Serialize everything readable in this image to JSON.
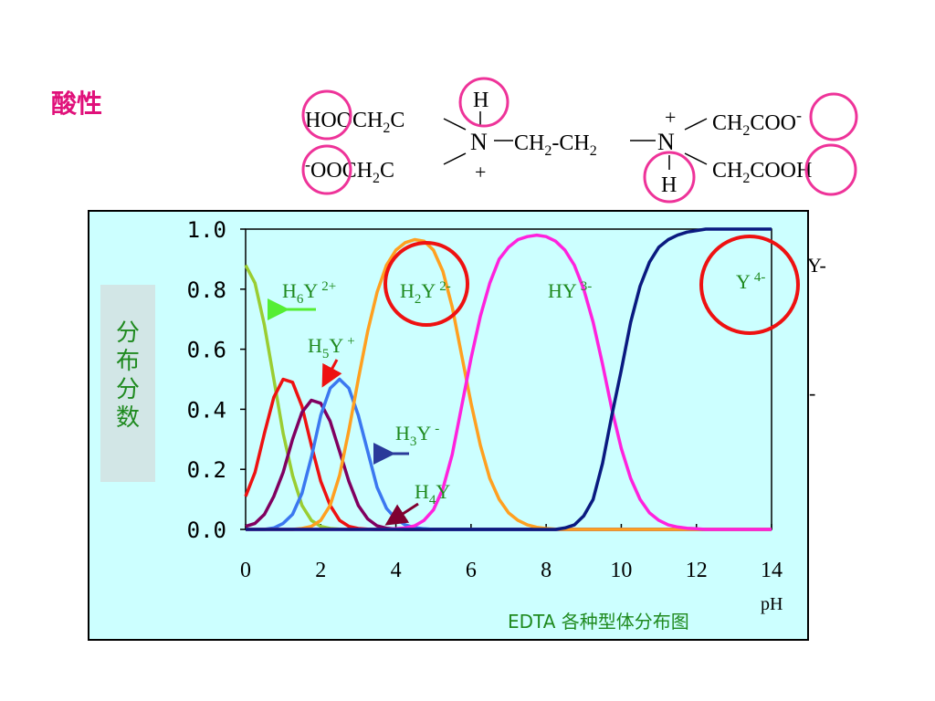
{
  "slide": {
    "title": "酸性",
    "formula": {
      "h_top": "H",
      "h_bottom": "H",
      "top_left": "HOOCH",
      "top_left_sub": "2",
      "top_left_end": "C",
      "bottom_left_sign": "-",
      "bottom_left": "OOCH",
      "bottom_left_sub": "2",
      "bottom_left_end": "C",
      "n1": "N",
      "n2": "N",
      "bridge_a": "CH",
      "bridge_a_sub": "2",
      "bridge_dash": "-",
      "bridge_b": "CH",
      "bridge_b_sub": "2",
      "plus_top": "+",
      "plus_bottom": "+",
      "top_right": "CH",
      "top_right_sub": "2",
      "top_right_end": "COO",
      "top_right_sign": "-",
      "bottom_right": "CH",
      "bottom_right_sub": "2",
      "bottom_right_end": "COOH"
    },
    "stray_labels": {
      "y_minus": "Y-",
      "dash": "-"
    }
  },
  "chart_data": {
    "type": "line",
    "title": "EDTA 各种型体分布图",
    "xlabel": "pH",
    "ylabel": "分布分数",
    "xlim": [
      0,
      14
    ],
    "ylim": [
      0,
      1.0
    ],
    "x_ticks": [
      "0",
      "2",
      "4",
      "6",
      "8",
      "10",
      "12",
      "14"
    ],
    "y_ticks": [
      "0.0",
      "0.2",
      "0.4",
      "0.6",
      "0.8",
      "1.0"
    ],
    "grid": false,
    "x": [
      0,
      0.25,
      0.5,
      0.75,
      1.0,
      1.25,
      1.5,
      1.75,
      2.0,
      2.25,
      2.5,
      2.75,
      3.0,
      3.25,
      3.5,
      3.75,
      4.0,
      4.25,
      4.5,
      4.75,
      5.0,
      5.25,
      5.5,
      5.75,
      6.0,
      6.25,
      6.5,
      6.75,
      7.0,
      7.25,
      7.5,
      7.75,
      8.0,
      8.25,
      8.5,
      8.75,
      9.0,
      9.25,
      9.5,
      9.75,
      10.0,
      10.25,
      10.5,
      10.75,
      11.0,
      11.25,
      11.5,
      11.75,
      12.0,
      12.25,
      12.5,
      12.75,
      13.0,
      13.25,
      13.5,
      13.75,
      14.0
    ],
    "series": [
      {
        "name": "H6Y 2+",
        "color": "#9acd32",
        "values": [
          0.88,
          0.82,
          0.68,
          0.5,
          0.32,
          0.18,
          0.08,
          0.03,
          0.01,
          0.003,
          0.001,
          0,
          0,
          0,
          0,
          0,
          0,
          0,
          0,
          0,
          0,
          0,
          0,
          0,
          0,
          0,
          0,
          0,
          0,
          0,
          0,
          0,
          0,
          0,
          0,
          0,
          0,
          0,
          0,
          0,
          0,
          0,
          0,
          0,
          0,
          0,
          0,
          0,
          0,
          0,
          0,
          0,
          0,
          0,
          0,
          0,
          0
        ]
      },
      {
        "name": "H5Y +",
        "color": "#ee1111",
        "values": [
          0.11,
          0.19,
          0.32,
          0.44,
          0.5,
          0.49,
          0.41,
          0.28,
          0.16,
          0.08,
          0.03,
          0.01,
          0.003,
          0.001,
          0,
          0,
          0,
          0,
          0,
          0,
          0,
          0,
          0,
          0,
          0,
          0,
          0,
          0,
          0,
          0,
          0,
          0,
          0,
          0,
          0,
          0,
          0,
          0,
          0,
          0,
          0,
          0,
          0,
          0,
          0,
          0,
          0,
          0,
          0,
          0,
          0,
          0,
          0,
          0,
          0,
          0,
          0
        ]
      },
      {
        "name": "H4Y",
        "color": "#800060",
        "values": [
          0.01,
          0.02,
          0.05,
          0.11,
          0.19,
          0.3,
          0.39,
          0.43,
          0.42,
          0.36,
          0.26,
          0.16,
          0.08,
          0.035,
          0.012,
          0.004,
          0.001,
          0,
          0,
          0,
          0,
          0,
          0,
          0,
          0,
          0,
          0,
          0,
          0,
          0,
          0,
          0,
          0,
          0,
          0,
          0,
          0,
          0,
          0,
          0,
          0,
          0,
          0,
          0,
          0,
          0,
          0,
          0,
          0,
          0,
          0,
          0,
          0,
          0,
          0,
          0,
          0
        ]
      },
      {
        "name": "H3Y -",
        "color": "#3b78f0",
        "values": [
          0,
          0,
          0,
          0.005,
          0.02,
          0.05,
          0.12,
          0.24,
          0.38,
          0.47,
          0.5,
          0.47,
          0.38,
          0.26,
          0.14,
          0.07,
          0.035,
          0.015,
          0.006,
          0.002,
          0,
          0,
          0,
          0,
          0,
          0,
          0,
          0,
          0,
          0,
          0,
          0,
          0,
          0,
          0,
          0,
          0,
          0,
          0,
          0,
          0,
          0,
          0,
          0,
          0,
          0,
          0,
          0,
          0,
          0,
          0,
          0,
          0,
          0,
          0,
          0,
          0
        ]
      },
      {
        "name": "H2Y 2-",
        "color": "#ffa020",
        "values": [
          0,
          0,
          0,
          0,
          0,
          0,
          0.003,
          0.01,
          0.03,
          0.08,
          0.18,
          0.33,
          0.5,
          0.66,
          0.79,
          0.88,
          0.93,
          0.955,
          0.965,
          0.96,
          0.93,
          0.86,
          0.74,
          0.58,
          0.42,
          0.28,
          0.17,
          0.1,
          0.055,
          0.03,
          0.015,
          0.007,
          0.003,
          0.001,
          0,
          0,
          0,
          0,
          0,
          0,
          0,
          0,
          0,
          0,
          0,
          0,
          0,
          0,
          0,
          0,
          0,
          0,
          0,
          0,
          0,
          0,
          0
        ]
      },
      {
        "name": "HY 3-",
        "color": "#ff22dd",
        "values": [
          0,
          0,
          0,
          0,
          0,
          0,
          0,
          0,
          0,
          0,
          0,
          0,
          0,
          0,
          0,
          0,
          0.002,
          0.005,
          0.012,
          0.03,
          0.065,
          0.135,
          0.25,
          0.41,
          0.57,
          0.71,
          0.82,
          0.9,
          0.94,
          0.965,
          0.975,
          0.98,
          0.975,
          0.96,
          0.93,
          0.88,
          0.8,
          0.69,
          0.55,
          0.4,
          0.27,
          0.17,
          0.1,
          0.055,
          0.03,
          0.015,
          0.008,
          0.004,
          0.002,
          0,
          0,
          0,
          0,
          0,
          0,
          0,
          0
        ]
      },
      {
        "name": "Y 4-",
        "color": "#0a1a80",
        "values": [
          0,
          0,
          0,
          0,
          0,
          0,
          0,
          0,
          0,
          0,
          0,
          0,
          0,
          0,
          0,
          0,
          0,
          0,
          0,
          0,
          0,
          0,
          0,
          0,
          0,
          0,
          0,
          0,
          0,
          0,
          0,
          0,
          0,
          0,
          0.005,
          0.015,
          0.045,
          0.1,
          0.22,
          0.38,
          0.53,
          0.69,
          0.81,
          0.89,
          0.94,
          0.965,
          0.98,
          0.99,
          0.995,
          1.0,
          1.0,
          1.0,
          1.0,
          1.0,
          1.0,
          1.0,
          1.0
        ]
      }
    ],
    "labels": [
      {
        "base": "H",
        "sub": "6",
        "main": "Y",
        "sup": "2+",
        "color": "#1f8a1f"
      },
      {
        "base": "H",
        "sub": "5",
        "main": "Y",
        "sup": "+",
        "color": "#1f8a1f"
      },
      {
        "base": "H",
        "sub": "2",
        "main": "Y",
        "sup": "2-",
        "color": "#1f8a1f"
      },
      {
        "base": "",
        "sub": "",
        "main": "HY",
        "sup": "3-",
        "color": "#1f8a1f"
      },
      {
        "base": "H",
        "sub": "3",
        "main": "Y",
        "sup": "-",
        "color": "#1f8a1f"
      },
      {
        "base": "H",
        "sub": "4",
        "main": "Y",
        "sup": "",
        "color": "#1f8a1f"
      },
      {
        "base": "",
        "sub": "",
        "main": "Y",
        "sup": "4-",
        "color": "#1f8a1f"
      }
    ],
    "highlight_circles": [
      "H2Y 2-",
      "Y 4-"
    ]
  }
}
